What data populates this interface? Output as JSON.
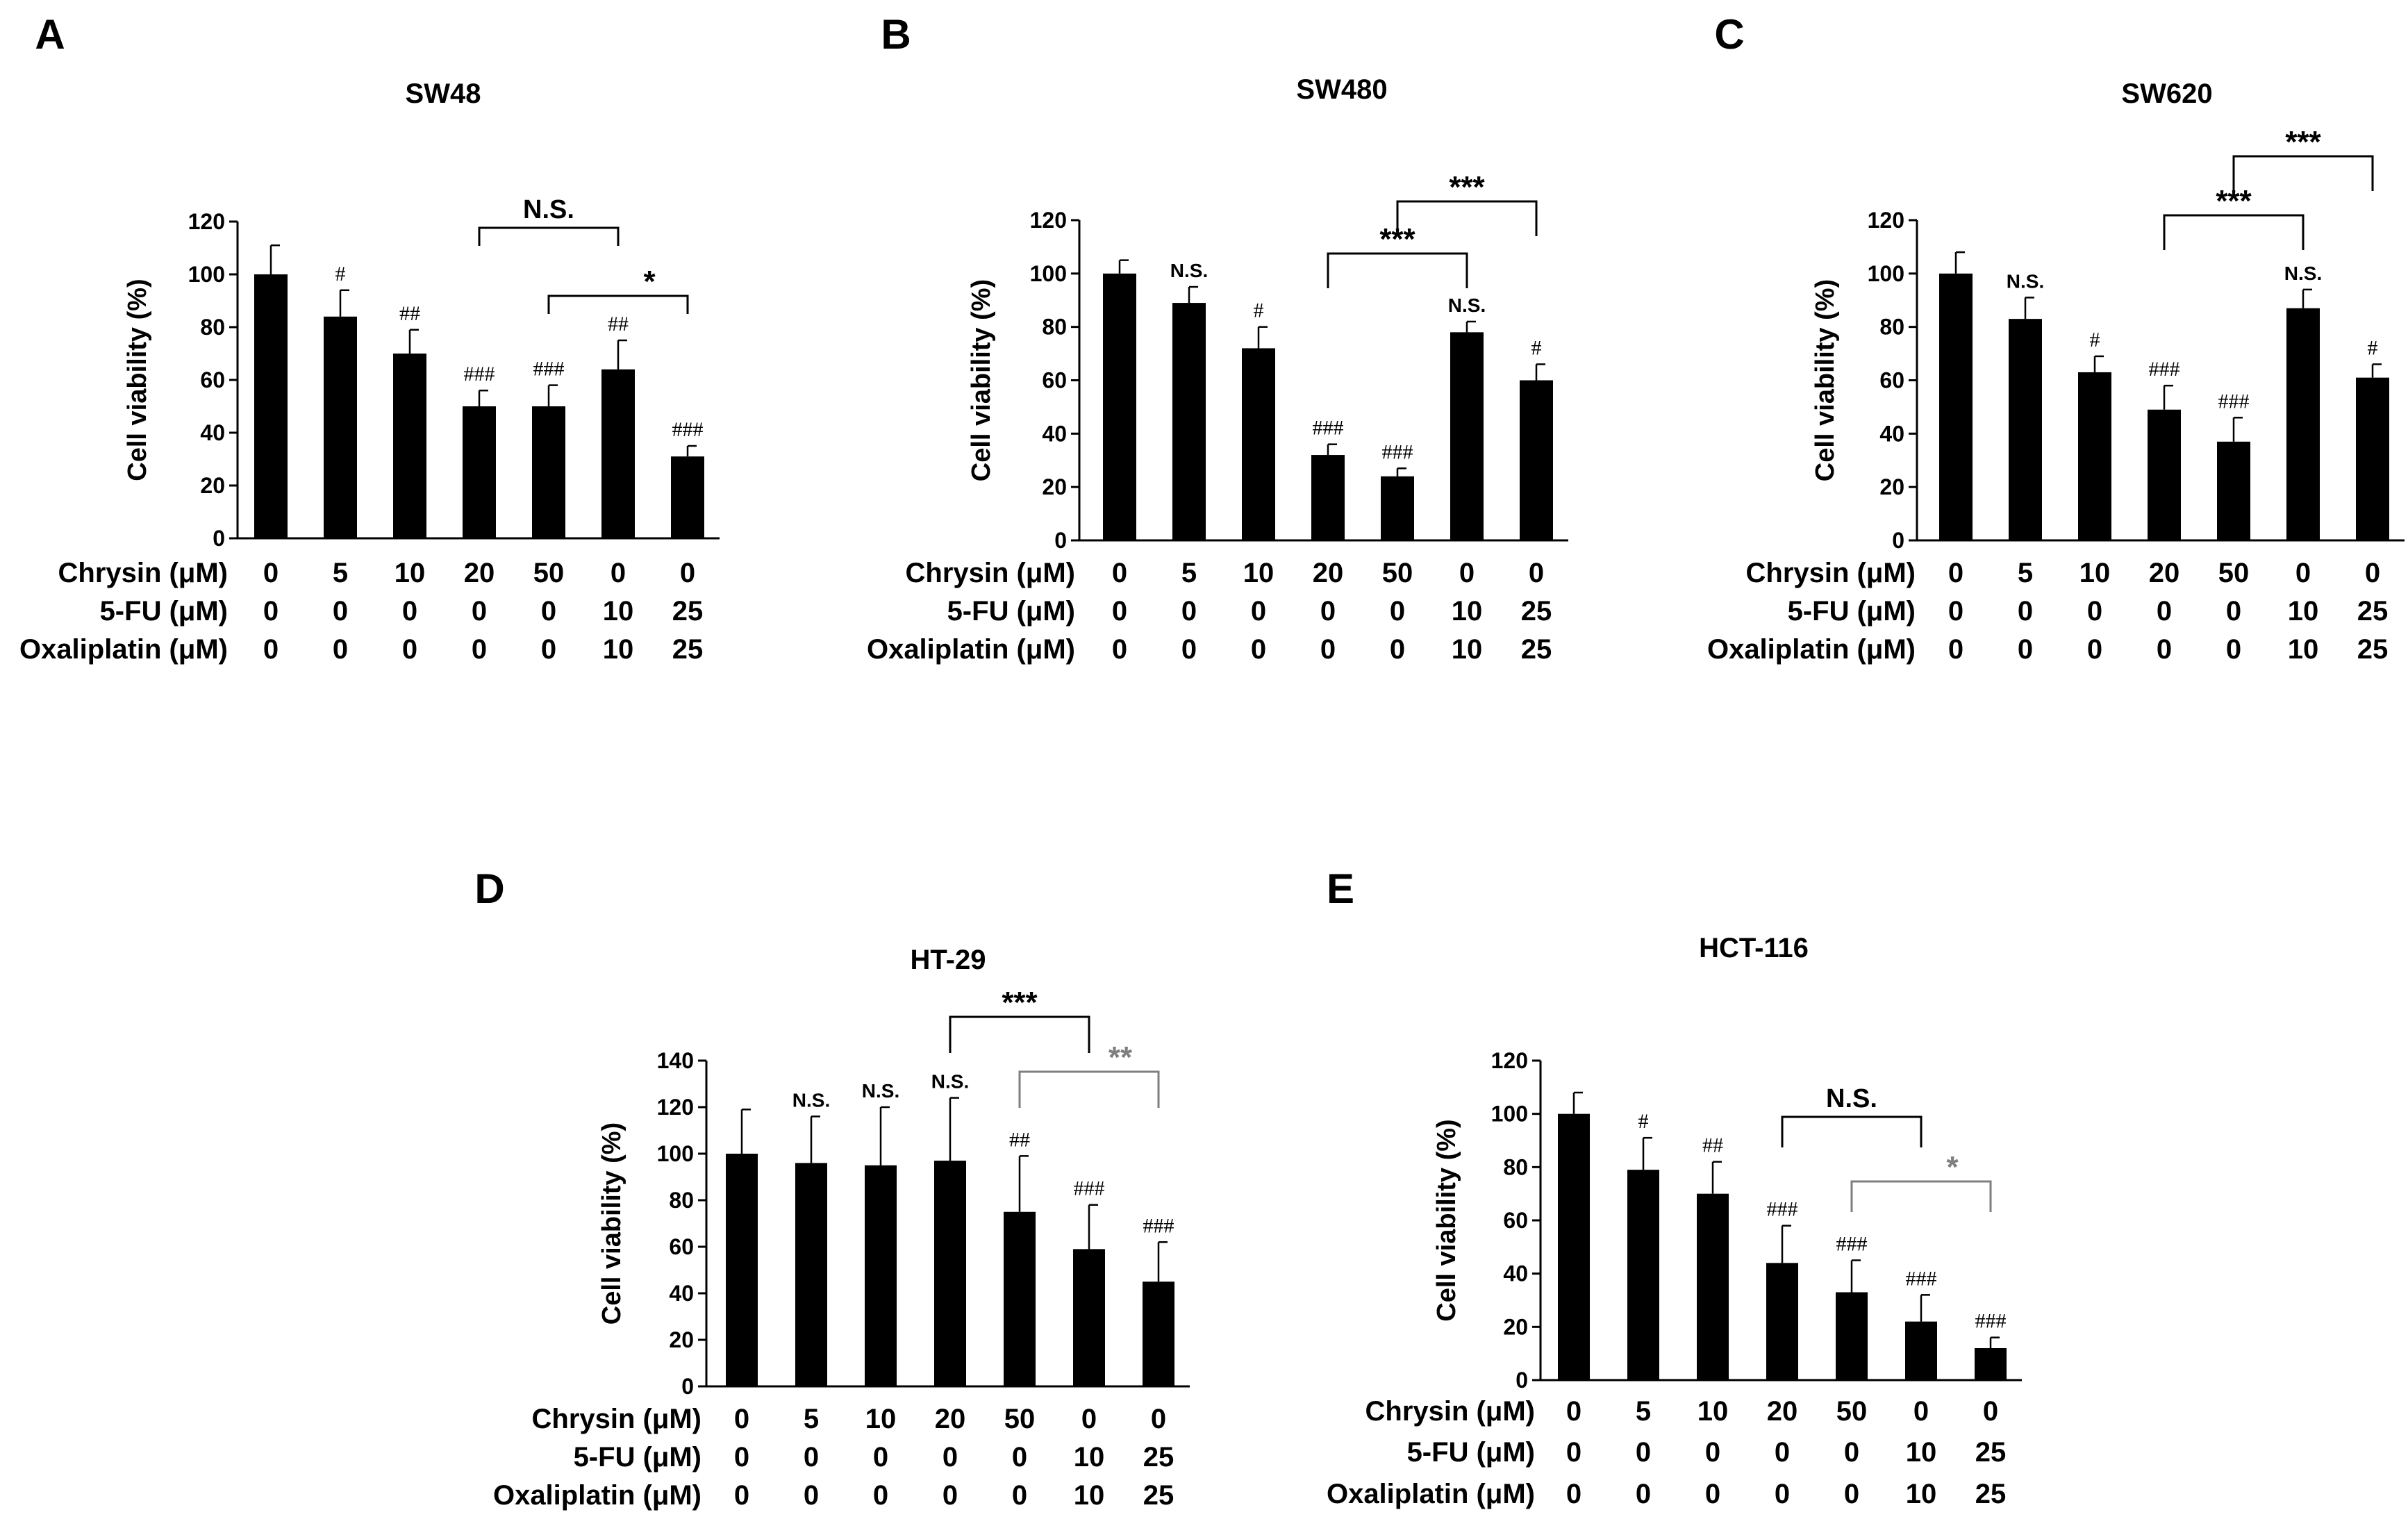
{
  "row_labels": [
    "Chrysin (μM)",
    "5-FU (μM)",
    "Oxaliplatin (μM)"
  ],
  "chart_data": [
    {
      "id": "A",
      "type": "bar",
      "panel_label": "A",
      "title": "SW48",
      "ylabel": "Cell viability (%)",
      "ylim": [
        0,
        120
      ],
      "yticks": [
        0,
        20,
        40,
        60,
        80,
        100,
        120
      ],
      "conditions": {
        "chrysin": [
          "0",
          "5",
          "10",
          "20",
          "50",
          "0",
          "0"
        ],
        "fu": [
          "0",
          "0",
          "0",
          "0",
          "0",
          "10",
          "25"
        ],
        "oxaliplatin": [
          "0",
          "0",
          "0",
          "0",
          "0",
          "10",
          "25"
        ]
      },
      "values": [
        100,
        84,
        70,
        50,
        50,
        64,
        31
      ],
      "errors": [
        11,
        10,
        9,
        6,
        8,
        11,
        4
      ],
      "annotations": [
        "",
        "#",
        "##",
        "###",
        "###",
        "##",
        "###"
      ],
      "brackets": [
        {
          "from": 3,
          "to": 5,
          "label": "N.S.",
          "level": 2,
          "color": "#000000"
        },
        {
          "from": 4,
          "to": 6,
          "label": "*",
          "level": 1,
          "color": "#000000"
        }
      ]
    },
    {
      "id": "B",
      "type": "bar",
      "panel_label": "B",
      "title": "SW480",
      "ylabel": "Cell viability (%)",
      "ylim": [
        0,
        120
      ],
      "yticks": [
        0,
        20,
        40,
        60,
        80,
        100,
        120
      ],
      "conditions": {
        "chrysin": [
          "0",
          "5",
          "10",
          "20",
          "50",
          "0",
          "0"
        ],
        "fu": [
          "0",
          "0",
          "0",
          "0",
          "0",
          "10",
          "25"
        ],
        "oxaliplatin": [
          "0",
          "0",
          "0",
          "0",
          "0",
          "10",
          "25"
        ]
      },
      "values": [
        100,
        89,
        72,
        32,
        24,
        78,
        60
      ],
      "errors": [
        5,
        6,
        8,
        4,
        3,
        4,
        6
      ],
      "annotations": [
        "",
        "N.S.",
        "#",
        "###",
        "###",
        "N.S.",
        "#"
      ],
      "brackets": [
        {
          "from": 3,
          "to": 5,
          "label": "***",
          "level": 1,
          "color": "#000000"
        },
        {
          "from": 4,
          "to": 6,
          "label": "***",
          "level": 2,
          "color": "#000000"
        }
      ]
    },
    {
      "id": "C",
      "type": "bar",
      "panel_label": "C",
      "title": "SW620",
      "ylabel": "Cell viability (%)",
      "ylim": [
        0,
        120
      ],
      "yticks": [
        0,
        20,
        40,
        60,
        80,
        100,
        120
      ],
      "conditions": {
        "chrysin": [
          "0",
          "5",
          "10",
          "20",
          "50",
          "0",
          "0"
        ],
        "fu": [
          "0",
          "0",
          "0",
          "0",
          "0",
          "10",
          "25"
        ],
        "oxaliplatin": [
          "0",
          "0",
          "0",
          "0",
          "0",
          "10",
          "25"
        ]
      },
      "values": [
        100,
        83,
        63,
        49,
        37,
        87,
        61
      ],
      "errors": [
        8,
        8,
        6,
        9,
        9,
        7,
        5
      ],
      "annotations": [
        "",
        "N.S.",
        "#",
        "###",
        "###",
        "N.S.",
        "#"
      ],
      "brackets": [
        {
          "from": 3,
          "to": 5,
          "label": "***",
          "level": 1,
          "color": "#000000"
        },
        {
          "from": 4,
          "to": 6,
          "label": "***",
          "level": 2,
          "color": "#000000"
        }
      ]
    },
    {
      "id": "D",
      "type": "bar",
      "panel_label": "D",
      "title": "HT-29",
      "ylabel": "Cell viability (%)",
      "ylim": [
        0,
        140
      ],
      "yticks": [
        0,
        20,
        40,
        60,
        80,
        100,
        120,
        140
      ],
      "conditions": {
        "chrysin": [
          "0",
          "5",
          "10",
          "20",
          "50",
          "0",
          "0"
        ],
        "fu": [
          "0",
          "0",
          "0",
          "0",
          "0",
          "10",
          "25"
        ],
        "oxaliplatin": [
          "0",
          "0",
          "0",
          "0",
          "0",
          "10",
          "25"
        ]
      },
      "values": [
        100,
        96,
        95,
        97,
        75,
        59,
        45
      ],
      "errors": [
        19,
        20,
        25,
        27,
        24,
        19,
        17
      ],
      "annotations": [
        "",
        "N.S.",
        "N.S.",
        "N.S.",
        "##",
        "###",
        "###"
      ],
      "brackets": [
        {
          "from": 3,
          "to": 5,
          "label": "***",
          "level": 2,
          "color": "#000000"
        },
        {
          "from": 4,
          "to": 6,
          "label": "**",
          "level": 1,
          "color": "#7f7f7f"
        }
      ]
    },
    {
      "id": "E",
      "type": "bar",
      "panel_label": "E",
      "title": "HCT-116",
      "ylabel": "Cell viability (%)",
      "ylim": [
        0,
        120
      ],
      "yticks": [
        0,
        20,
        40,
        60,
        80,
        100,
        120
      ],
      "conditions": {
        "chrysin": [
          "0",
          "5",
          "10",
          "20",
          "50",
          "0",
          "0"
        ],
        "fu": [
          "0",
          "0",
          "0",
          "0",
          "0",
          "10",
          "25"
        ],
        "oxaliplatin": [
          "0",
          "0",
          "0",
          "0",
          "0",
          "10",
          "25"
        ]
      },
      "values": [
        100,
        79,
        70,
        44,
        33,
        22,
        12
      ],
      "errors": [
        8,
        12,
        12,
        14,
        12,
        10,
        4
      ],
      "annotations": [
        "",
        "#",
        "##",
        "###",
        "###",
        "###",
        "###"
      ],
      "brackets": [
        {
          "from": 3,
          "to": 5,
          "label": "N.S.",
          "level": 2,
          "color": "#000000"
        },
        {
          "from": 4,
          "to": 6,
          "label": "*",
          "level": 1,
          "color": "#7f7f7f"
        }
      ]
    }
  ]
}
